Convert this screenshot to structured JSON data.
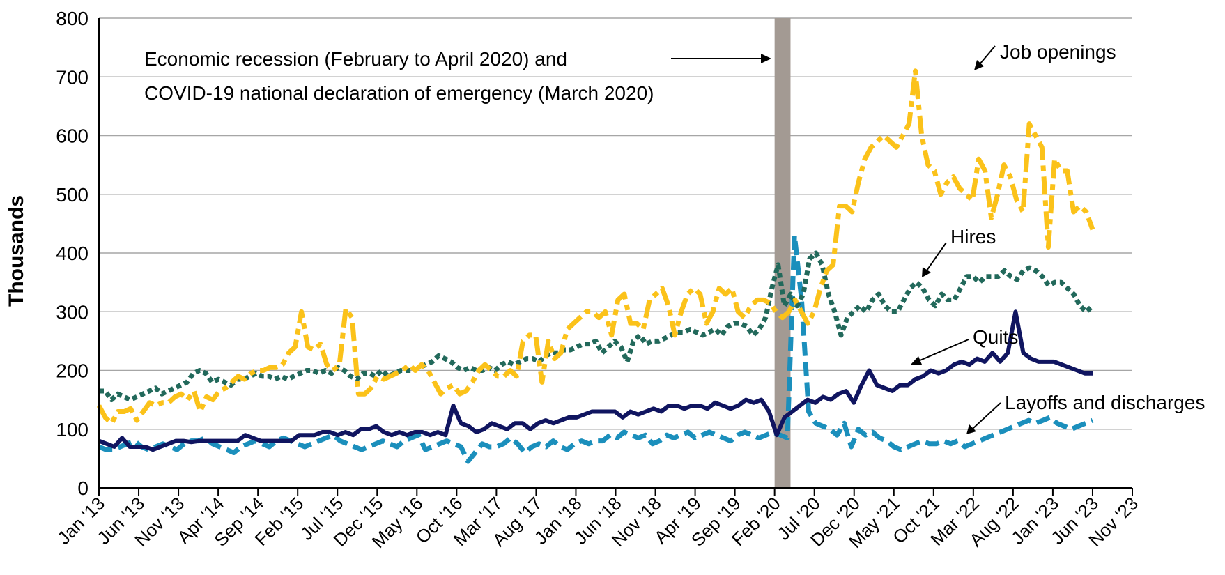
{
  "chart_data": {
    "type": "line",
    "title": "",
    "xlabel": "",
    "ylabel": "Thousands",
    "ylim": [
      0,
      800
    ],
    "yticks": [
      0,
      100,
      200,
      300,
      400,
      500,
      600,
      700,
      800
    ],
    "grid": true,
    "x_start": "Jan '13",
    "x_end": "Nov '23",
    "x_tick_labels": [
      "Jan '13",
      "Jun '13",
      "Nov '13",
      "Apr '14",
      "Sep '14",
      "Feb '15",
      "Jul '15",
      "Dec '15",
      "May '16",
      "Oct '16",
      "Mar '17",
      "Aug '17",
      "Jan '18",
      "Jun '18",
      "Nov '18",
      "Apr '19",
      "Sep '19",
      "Feb '20",
      "Jul '20",
      "Dec '20",
      "May '21",
      "Oct '21",
      "Mar '22",
      "Aug '22",
      "Jan '23",
      "Jun '23",
      "Nov '23"
    ],
    "shaded_region": {
      "start": "Feb '20",
      "end": "Apr '20",
      "color": "#a39a93"
    },
    "annotation": {
      "line1": "Economic recession (February to April 2020) and",
      "line2": "COVID-19 national declaration of emergency (March 2020)"
    },
    "series": [
      {
        "name": "Job openings",
        "color": "#fbc21a",
        "style": "dash-dot",
        "values": [
          140,
          120,
          110,
          130,
          130,
          135,
          115,
          130,
          145,
          140,
          145,
          145,
          155,
          160,
          150,
          165,
          130,
          155,
          150,
          165,
          170,
          180,
          190,
          185,
          195,
          200,
          200,
          205,
          205,
          210,
          230,
          240,
          300,
          240,
          235,
          245,
          210,
          200,
          210,
          305,
          290,
          160,
          160,
          170,
          190,
          185,
          190,
          195,
          200,
          210,
          200,
          210,
          200,
          180,
          160,
          170,
          175,
          160,
          165,
          180,
          200,
          210,
          200,
          190,
          190,
          200,
          190,
          250,
          260,
          260,
          180,
          250,
          220,
          230,
          270,
          280,
          290,
          300,
          300,
          290,
          300,
          260,
          320,
          330,
          280,
          280,
          270,
          320,
          330,
          340,
          310,
          260,
          300,
          330,
          340,
          330,
          280,
          300,
          340,
          330,
          340,
          300,
          290,
          310,
          320,
          320,
          315,
          300,
          290,
          300,
          320,
          300,
          280,
          300,
          340,
          370,
          380,
          480,
          480,
          470,
          520,
          560,
          580,
          590,
          600,
          590,
          580,
          600,
          620,
          710,
          600,
          550,
          540,
          500,
          520,
          530,
          510,
          500,
          490,
          560,
          540,
          460,
          500,
          550,
          530,
          490,
          470,
          620,
          600,
          580,
          410,
          560,
          540,
          540,
          470,
          480,
          470,
          440
        ]
      },
      {
        "name": "Hires",
        "color": "#22695b",
        "style": "dotted",
        "values": [
          165,
          165,
          150,
          160,
          155,
          150,
          155,
          160,
          165,
          170,
          160,
          165,
          170,
          175,
          180,
          195,
          200,
          195,
          180,
          185,
          180,
          175,
          185,
          185,
          190,
          195,
          190,
          190,
          185,
          190,
          185,
          190,
          195,
          200,
          200,
          195,
          200,
          195,
          205,
          200,
          190,
          185,
          195,
          195,
          190,
          200,
          190,
          195,
          200,
          200,
          200,
          205,
          210,
          215,
          225,
          220,
          215,
          205,
          200,
          205,
          200,
          200,
          205,
          200,
          210,
          215,
          210,
          215,
          220,
          220,
          215,
          225,
          230,
          230,
          235,
          235,
          240,
          245,
          245,
          250,
          230,
          240,
          250,
          240,
          215,
          250,
          260,
          245,
          250,
          250,
          255,
          260,
          265,
          265,
          270,
          265,
          260,
          265,
          270,
          260,
          275,
          280,
          280,
          275,
          260,
          270,
          290,
          340,
          380,
          310,
          330,
          310,
          330,
          390,
          400,
          380,
          330,
          300,
          260,
          290,
          300,
          310,
          300,
          320,
          330,
          310,
          300,
          300,
          320,
          340,
          350,
          340,
          320,
          310,
          330,
          320,
          320,
          340,
          360,
          360,
          350,
          360,
          360,
          360,
          370,
          360,
          355,
          370,
          375,
          370,
          360,
          345,
          350,
          350,
          340,
          330,
          310,
          300,
          310
        ]
      },
      {
        "name": "Quits",
        "color": "#101560",
        "style": "solid",
        "values": [
          80,
          75,
          70,
          85,
          70,
          70,
          70,
          65,
          70,
          75,
          80,
          80,
          78,
          80,
          80,
          80,
          80,
          80,
          80,
          90,
          85,
          80,
          80,
          80,
          80,
          80,
          90,
          90,
          90,
          95,
          95,
          90,
          95,
          90,
          100,
          100,
          105,
          95,
          90,
          95,
          90,
          95,
          95,
          90,
          95,
          90,
          140,
          110,
          105,
          95,
          100,
          110,
          105,
          100,
          110,
          110,
          100,
          110,
          115,
          110,
          115,
          120,
          120,
          125,
          130,
          130,
          130,
          130,
          120,
          130,
          125,
          130,
          135,
          130,
          140,
          140,
          135,
          140,
          140,
          135,
          145,
          140,
          135,
          140,
          150,
          145,
          150,
          130,
          90,
          120,
          130,
          140,
          150,
          145,
          155,
          150,
          160,
          165,
          145,
          175,
          200,
          175,
          170,
          165,
          175,
          175,
          185,
          190,
          200,
          195,
          200,
          210,
          215,
          210,
          220,
          215,
          230,
          215,
          230,
          300,
          230,
          220,
          215,
          215,
          215,
          210,
          205,
          200,
          195,
          195
        ]
      },
      {
        "name": "Layoffs and discharges",
        "color": "#1b8fbc",
        "style": "dashed",
        "values": [
          70,
          65,
          65,
          70,
          75,
          80,
          70,
          65,
          70,
          75,
          70,
          65,
          75,
          80,
          80,
          85,
          75,
          70,
          65,
          60,
          70,
          75,
          80,
          75,
          70,
          80,
          85,
          80,
          75,
          70,
          75,
          80,
          85,
          90,
          80,
          75,
          70,
          65,
          70,
          75,
          80,
          75,
          70,
          80,
          85,
          90,
          65,
          70,
          75,
          80,
          75,
          70,
          45,
          60,
          75,
          70,
          70,
          75,
          85,
          75,
          60,
          70,
          75,
          70,
          80,
          70,
          65,
          75,
          80,
          75,
          80,
          80,
          90,
          85,
          95,
          90,
          85,
          90,
          75,
          80,
          90,
          85,
          90,
          95,
          85,
          90,
          95,
          90,
          85,
          80,
          90,
          95,
          90,
          85,
          90,
          95,
          90,
          85,
          430,
          320,
          130,
          110,
          105,
          100,
          90,
          110,
          70,
          100,
          90,
          95,
          85,
          80,
          70,
          65,
          70,
          75,
          80,
          75,
          75,
          80,
          75,
          80,
          70,
          75,
          80,
          85,
          90,
          95,
          100,
          105,
          110,
          115,
          110,
          115,
          120,
          110,
          105,
          100,
          105,
          110,
          115
        ]
      }
    ],
    "labels": {
      "job_openings": "Job openings",
      "hires": "Hires",
      "quits": "Quits",
      "layoffs": "Layoffs and discharges"
    }
  }
}
